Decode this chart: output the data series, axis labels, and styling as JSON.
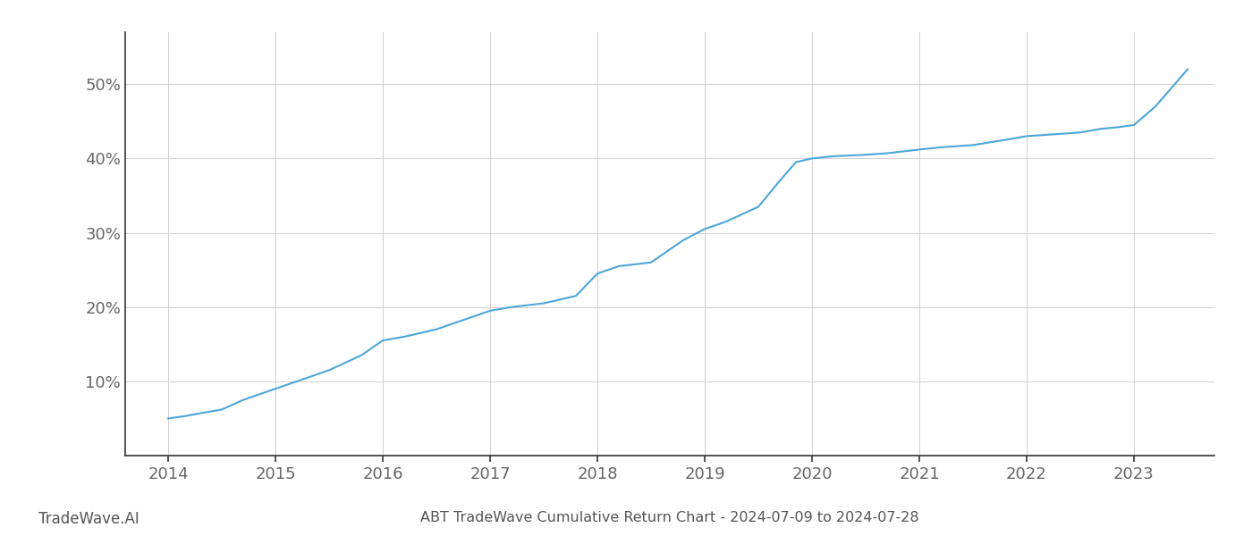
{
  "x_values": [
    2014.0,
    2014.15,
    2014.3,
    2014.5,
    2014.7,
    2015.0,
    2015.2,
    2015.5,
    2015.8,
    2016.0,
    2016.2,
    2016.5,
    2016.7,
    2017.0,
    2017.2,
    2017.5,
    2017.8,
    2018.0,
    2018.2,
    2018.5,
    2018.8,
    2019.0,
    2019.2,
    2019.5,
    2019.7,
    2019.85,
    2020.0,
    2020.2,
    2020.5,
    2020.7,
    2021.0,
    2021.2,
    2021.5,
    2021.8,
    2022.0,
    2022.2,
    2022.5,
    2022.7,
    2022.85,
    2023.0,
    2023.2,
    2023.5
  ],
  "y_values": [
    5.0,
    5.3,
    5.7,
    6.2,
    7.5,
    9.0,
    10.0,
    11.5,
    13.5,
    15.5,
    16.0,
    17.0,
    18.0,
    19.5,
    20.0,
    20.5,
    21.5,
    24.5,
    25.5,
    26.0,
    29.0,
    30.5,
    31.5,
    33.5,
    37.0,
    39.5,
    40.0,
    40.3,
    40.5,
    40.7,
    41.2,
    41.5,
    41.8,
    42.5,
    43.0,
    43.2,
    43.5,
    44.0,
    44.2,
    44.5,
    47.0,
    52.0
  ],
  "line_color": "#4da6d8",
  "line_width": 1.5,
  "background_color": "#ffffff",
  "grid_color": "#d0d0d0",
  "title": "ABT TradeWave Cumulative Return Chart - 2024-07-09 to 2024-07-28",
  "watermark": "TradeWave.AI",
  "x_tick_labels": [
    "2014",
    "2015",
    "2016",
    "2017",
    "2018",
    "2019",
    "2020",
    "2021",
    "2022",
    "2023"
  ],
  "x_tick_positions": [
    2014,
    2015,
    2016,
    2017,
    2018,
    2019,
    2020,
    2021,
    2022,
    2023
  ],
  "y_ticks": [
    10,
    20,
    30,
    40,
    50
  ],
  "ylim": [
    0,
    57
  ],
  "xlim": [
    2013.6,
    2023.75
  ],
  "title_fontsize": 11.5,
  "tick_fontsize": 13,
  "watermark_fontsize": 12
}
